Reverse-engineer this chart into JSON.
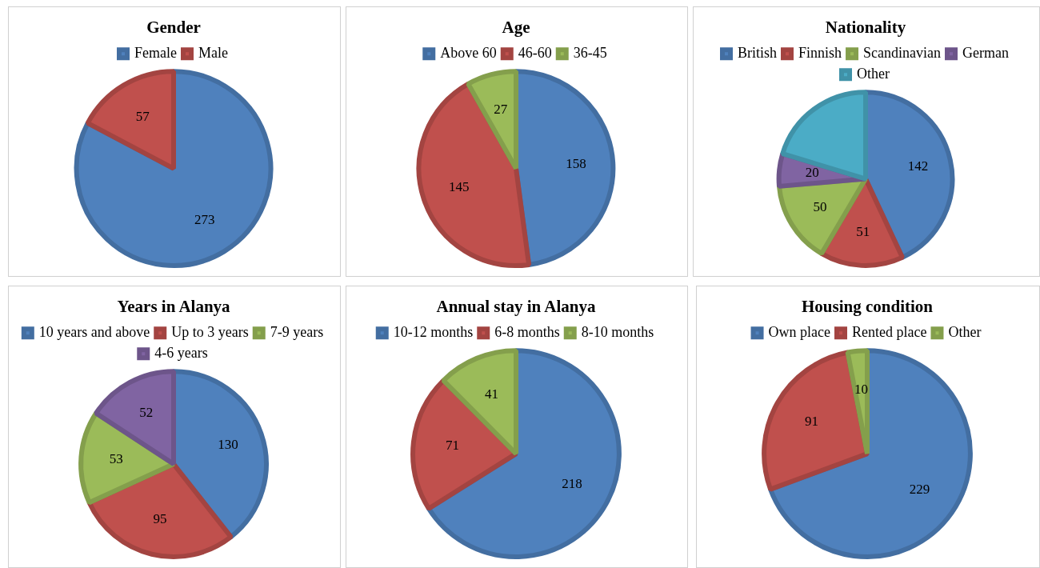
{
  "chart_data": [
    {
      "type": "pie",
      "title": "Gender",
      "categories": [
        "Female",
        "Male"
      ],
      "values": [
        273,
        57
      ],
      "colors": [
        "#4f81bd",
        "#c0504d"
      ],
      "legend": "top",
      "data_labels": true
    },
    {
      "type": "pie",
      "title": "Age",
      "categories": [
        "Above 60",
        "46-60",
        "36-45"
      ],
      "values": [
        158,
        145,
        27
      ],
      "colors": [
        "#4f81bd",
        "#c0504d",
        "#9bbb59"
      ],
      "legend": "top",
      "data_labels": true
    },
    {
      "type": "pie",
      "title": "Nationality",
      "categories": [
        "British",
        "Finnish",
        "Scandinavian",
        "German",
        "Other"
      ],
      "values": [
        142,
        51,
        50,
        20,
        67
      ],
      "colors": [
        "#4f81bd",
        "#c0504d",
        "#9bbb59",
        "#8064a2",
        "#4bacc6"
      ],
      "legend": "top",
      "value_labels": [
        "142",
        "51",
        "50",
        "20",
        null
      ]
    },
    {
      "type": "pie",
      "title": "Years in Alanya",
      "categories": [
        "10 years and above",
        "Up to 3 years",
        "7-9 years",
        "4-6 years"
      ],
      "values": [
        130,
        95,
        53,
        52
      ],
      "colors": [
        "#4f81bd",
        "#c0504d",
        "#9bbb59",
        "#8064a2"
      ],
      "legend": "top",
      "data_labels": true
    },
    {
      "type": "pie",
      "title": "Annual stay in Alanya",
      "categories": [
        "10-12 months",
        "6-8 months",
        "8-10 months"
      ],
      "values": [
        218,
        71,
        41
      ],
      "colors": [
        "#4f81bd",
        "#c0504d",
        "#9bbb59"
      ],
      "legend": "top",
      "data_labels": true
    },
    {
      "type": "pie",
      "title": "Housing condition",
      "categories": [
        "Own place",
        "Rented place",
        "Other"
      ],
      "values": [
        229,
        91,
        10
      ],
      "colors": [
        "#4f81bd",
        "#c0504d",
        "#9bbb59"
      ],
      "legend": "top",
      "data_labels": true
    }
  ]
}
